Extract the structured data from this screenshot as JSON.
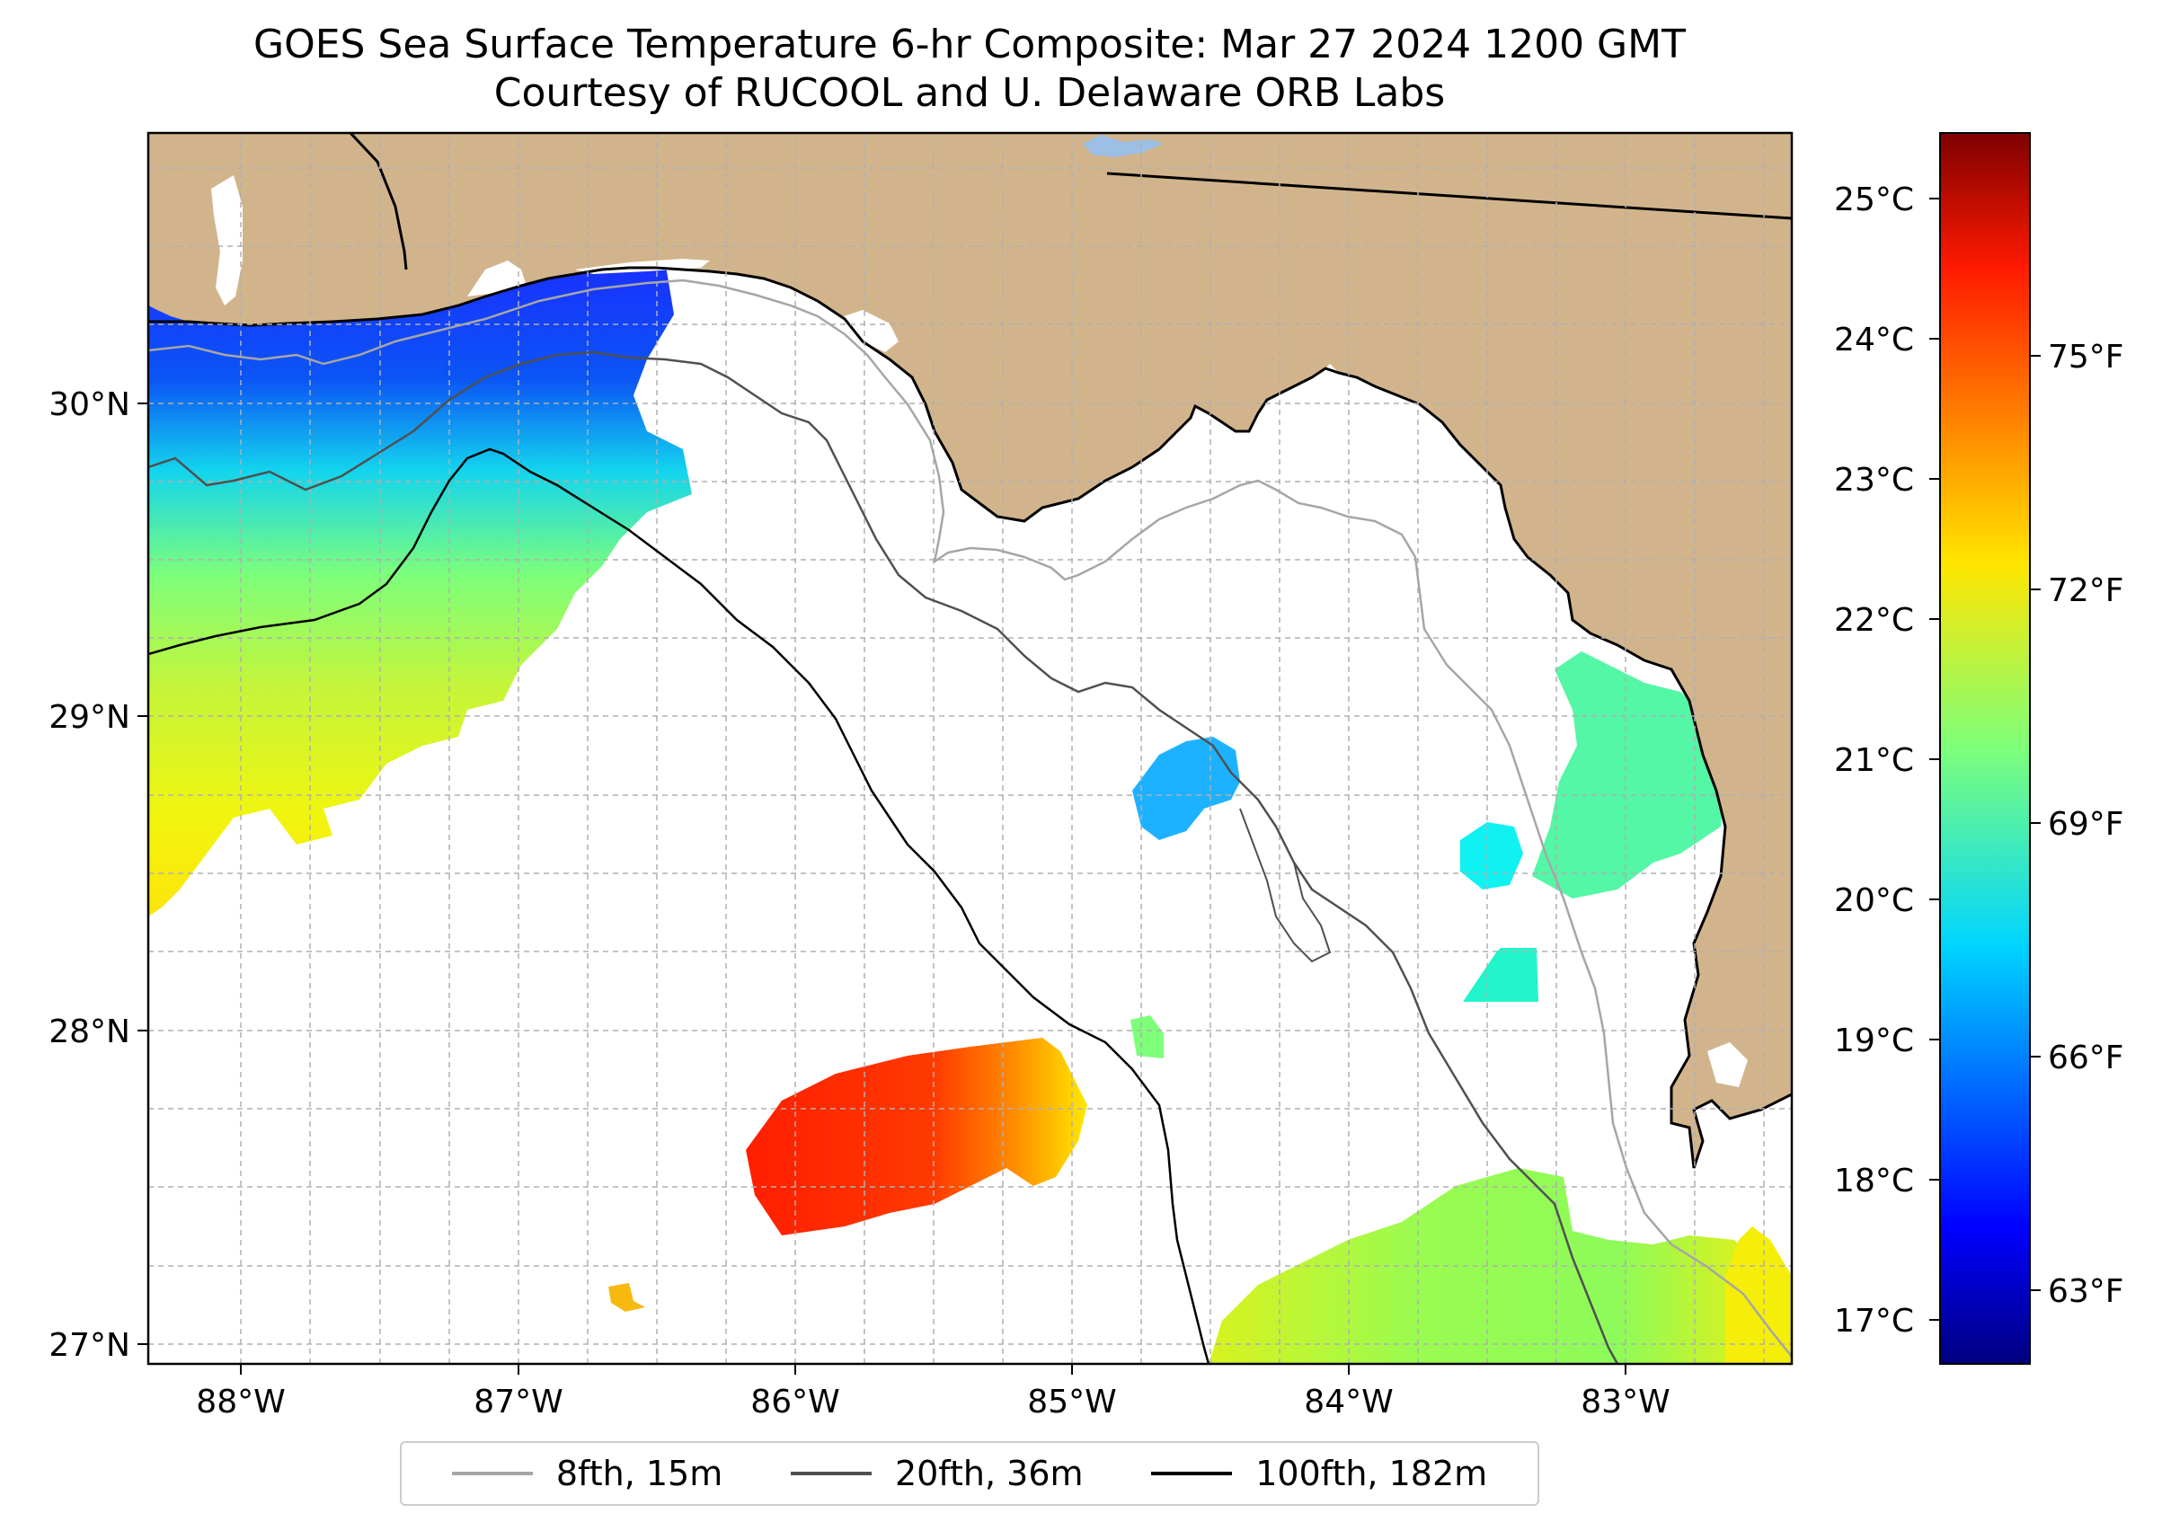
{
  "title": {
    "line1": "GOES Sea Surface Temperature 6-hr Composite: Mar 27 2024 1200 GMT",
    "line2": "Courtesy of RUCOOL and U. Delaware ORB Labs"
  },
  "map": {
    "extent": {
      "lon": [
        -88.33,
        -82.37
      ],
      "lat": [
        26.93,
        30.87
      ]
    },
    "lat_ticks": [
      "27°N",
      "28°N",
      "29°N",
      "30°N"
    ],
    "lon_ticks": [
      "88°W",
      "87°W",
      "86°W",
      "85°W",
      "84°W",
      "83°W"
    ],
    "gridlines": true,
    "land_color": "#d2b48c",
    "ocean_color": "#ffffff"
  },
  "colorbar": {
    "celsius_ticks": [
      "17°C",
      "18°C",
      "19°C",
      "20°C",
      "21°C",
      "22°C",
      "23°C",
      "24°C",
      "25°C"
    ],
    "fahrenheit_ticks": [
      "63°F",
      "66°F",
      "69°F",
      "72°F",
      "75°F"
    ],
    "range_c": [
      16.7,
      25.5
    ],
    "colormap": "jet"
  },
  "legend": {
    "items": [
      {
        "label": "8fth, 15m",
        "color": "#a6a6a6"
      },
      {
        "label": "20fth, 36m",
        "color": "#505050"
      },
      {
        "label": "100fth, 182m",
        "color": "#000000"
      }
    ]
  }
}
